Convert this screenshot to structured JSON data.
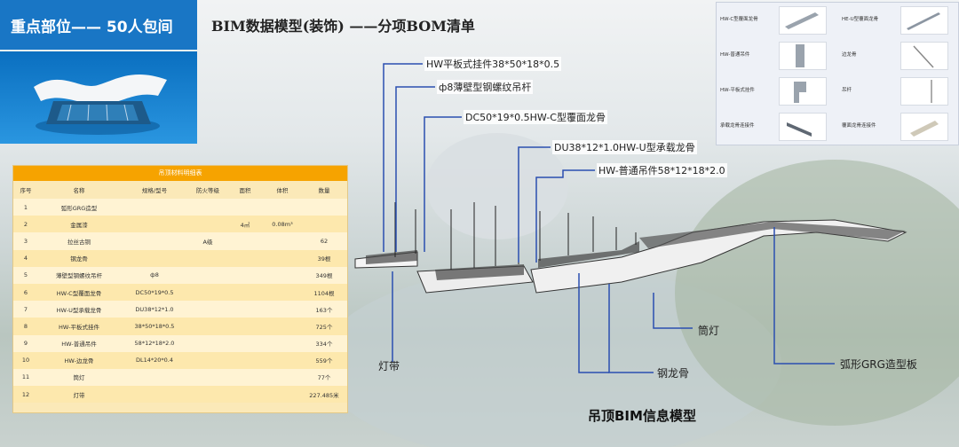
{
  "banner": {
    "title": "重点部位—— 50人包间"
  },
  "slide_title": "BIM数据模型(装饰) ——分项BOM清单",
  "model_title": "吊顶BIM信息模型",
  "table": {
    "title": "吊顶材料明细表",
    "headers": [
      "序号",
      "名称",
      "规格/型号",
      "防火等级",
      "面积",
      "体积",
      "数量"
    ],
    "rows": [
      [
        "1",
        "弧形GRG造型",
        "",
        "",
        "",
        "",
        ""
      ],
      [
        "2",
        "金属漆",
        "",
        "",
        "4㎡",
        "0.08m³",
        ""
      ],
      [
        "3",
        "拉丝古铜",
        "",
        "A级",
        "",
        "",
        "62"
      ],
      [
        "4",
        "钢龙骨",
        "",
        "",
        "",
        "",
        "39根"
      ],
      [
        "5",
        "薄壁型钢螺纹吊杆",
        "ф8",
        "",
        "",
        "",
        "349根"
      ],
      [
        "6",
        "HW-C型覆面龙骨",
        "DC50*19*0.5",
        "",
        "",
        "",
        "1104根"
      ],
      [
        "7",
        "HW-U型承载龙骨",
        "DU38*12*1.0",
        "",
        "",
        "",
        "163个"
      ],
      [
        "8",
        "HW-平板式挂件",
        "38*50*18*0.5",
        "",
        "",
        "",
        "725个"
      ],
      [
        "9",
        "HW-普通吊件",
        "58*12*18*2.0",
        "",
        "",
        "",
        "334个"
      ],
      [
        "10",
        "HW-边龙骨",
        "DL14*20*0.4",
        "",
        "",
        "",
        "559个"
      ],
      [
        "11",
        "筒灯",
        "",
        "",
        "",
        "",
        "77个"
      ],
      [
        "12",
        "灯带",
        "",
        "",
        "",
        "",
        "227.485米"
      ]
    ]
  },
  "panel": {
    "items": [
      {
        "label": "HW-C型覆面龙骨",
        "icon": "c-channel-icon"
      },
      {
        "label": "HE-U型覆面龙骨",
        "icon": "u-channel-icon"
      },
      {
        "label": "HW-普通吊件",
        "icon": "hanger-icon"
      },
      {
        "label": "边龙骨",
        "icon": "edge-keel-icon"
      },
      {
        "label": "HW-平板式挂件",
        "icon": "plate-clip-icon"
      },
      {
        "label": "吊杆",
        "icon": "rod-icon"
      },
      {
        "label": "承载龙骨连接件",
        "icon": "connector-icon"
      },
      {
        "label": "覆面龙骨连接件",
        "icon": "joint-icon"
      }
    ]
  },
  "callouts": {
    "c1": "HW平板式挂件38*50*18*0.5",
    "c2": "ф8薄壁型钢螺纹吊杆",
    "c3": "DC50*19*0.5HW-C型覆面龙骨",
    "c4": "DU38*12*1.0HW-U型承载龙骨",
    "c5": "HW-普通吊件58*12*18*2.0",
    "c6": "筒灯",
    "c7": "灯带",
    "c8": "钢龙骨",
    "c9": "弧形GRG造型板"
  },
  "colors": {
    "banner": "#1976c5",
    "table_header": "#f6a300",
    "table_bg": "#fbe9b8",
    "leader": "#2a4fb0"
  }
}
